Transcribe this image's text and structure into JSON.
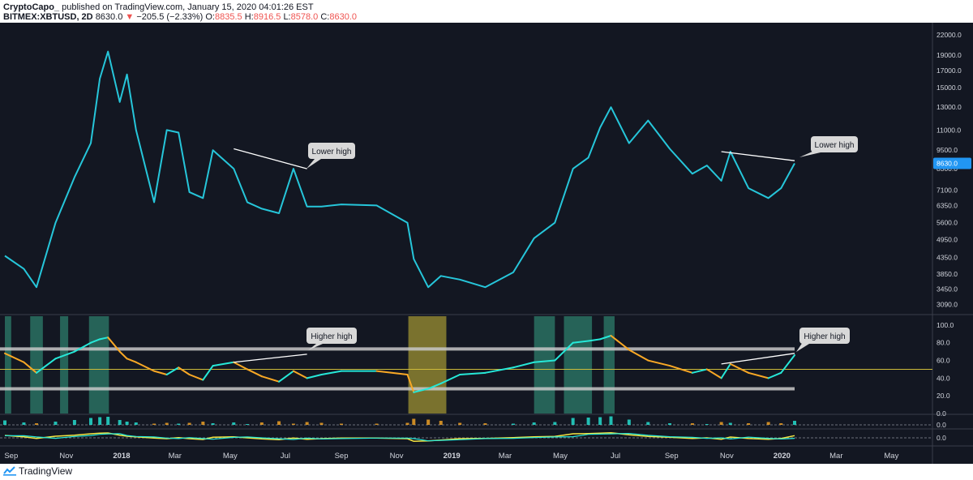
{
  "header": {
    "publisher": "CryptoCapo_",
    "published_text": "published on TradingView.com, January 15, 2020 04:01:26 EST",
    "symbol": "BITMEX:XBTUSD, 2D",
    "last": "8630.0",
    "arrow": "▼",
    "change": "−205.5 (−2.33%)",
    "o_label": "O:",
    "o_value": "8835.5",
    "h_label": "H:",
    "h_value": "8916.5",
    "l_label": "L:",
    "l_value": "8578.0",
    "c_label": "C:",
    "c_value": "8630.0"
  },
  "footer": {
    "brand": "TradingView"
  },
  "colors": {
    "background": "#131722",
    "price_line": "#26c6da",
    "rsi_up": "#26e8d8",
    "rsi_down": "#f9a825",
    "price_tag": "#2196f3",
    "band": "#c8c8c8",
    "mid_line": "#cdbb3a",
    "green_zone": "#2e7d6b",
    "yellow_zone": "#8d8230"
  },
  "chart_data": [
    {
      "type": "line",
      "name": "price",
      "scale": "log",
      "ylim": [
        2900,
        23500
      ],
      "y_ticks": [
        "22000.0",
        "19000.0",
        "17000.0",
        "15000.0",
        "13000.0",
        "11000.0",
        "9500.0",
        "8300.0",
        "7100.0",
        "6350.0",
        "5600.0",
        "4950.0",
        "4350.0",
        "3850.0",
        "3450.0",
        "3090.0"
      ],
      "y_tick_values": [
        22000,
        19000,
        17000,
        15000,
        13000,
        11000,
        9500,
        8300,
        7100,
        6350,
        5600,
        4950,
        4350,
        3850,
        3450,
        3090
      ],
      "last_value_label": "8630.0",
      "last_value": 8630,
      "x_ticks": [
        "Sep",
        "Nov",
        "2018",
        "Mar",
        "May",
        "Jul",
        "Sep",
        "Nov",
        "2019",
        "Mar",
        "May",
        "Jul",
        "Sep",
        "Nov",
        "2020",
        "Mar",
        "May"
      ],
      "x": [
        "2017-08-25",
        "2017-09-15",
        "2017-09-29",
        "2017-10-20",
        "2017-11-10",
        "2017-11-28",
        "2017-12-08",
        "2017-12-17",
        "2017-12-30",
        "2018-01-07",
        "2018-01-17",
        "2018-02-06",
        "2018-02-20",
        "2018-03-05",
        "2018-03-17",
        "2018-04-01",
        "2018-04-12",
        "2018-05-05",
        "2018-05-20",
        "2018-06-05",
        "2018-06-24",
        "2018-07-10",
        "2018-07-25",
        "2018-08-10",
        "2018-09-01",
        "2018-10-10",
        "2018-11-13",
        "2018-11-20",
        "2018-12-06",
        "2018-12-20",
        "2019-01-10",
        "2019-02-07",
        "2019-03-10",
        "2019-04-02",
        "2019-04-25",
        "2019-05-15",
        "2019-06-01",
        "2019-06-14",
        "2019-06-26",
        "2019-07-16",
        "2019-08-06",
        "2019-08-30",
        "2019-09-24",
        "2019-10-10",
        "2019-10-26",
        "2019-11-05",
        "2019-11-25",
        "2019-12-17",
        "2019-12-31",
        "2020-01-15"
      ],
      "values": [
        4400,
        4000,
        3500,
        5600,
        7800,
        10000,
        16000,
        19500,
        13500,
        16500,
        11000,
        6500,
        11000,
        10800,
        7000,
        6700,
        9500,
        8300,
        6500,
        6200,
        6000,
        8300,
        6300,
        6300,
        6400,
        6350,
        5600,
        4300,
        3500,
        3800,
        3700,
        3500,
        3900,
        5000,
        5600,
        8300,
        9000,
        11200,
        13000,
        10000,
        11800,
        9600,
        8000,
        8500,
        7600,
        9400,
        7200,
        6700,
        7200,
        8630
      ],
      "annotations": [
        "Lower high",
        "Lower high"
      ]
    },
    {
      "type": "line",
      "name": "rsi",
      "ylim": [
        0,
        110
      ],
      "y_ticks": [
        "100.0",
        "80.0",
        "60.0",
        "40.0",
        "20.0",
        "0.0"
      ],
      "y_tick_values": [
        100,
        80,
        60,
        40,
        20,
        0
      ],
      "band_lines": [
        73,
        28
      ],
      "mid_line": 50,
      "values": [
        68,
        58,
        46,
        62,
        70,
        80,
        84,
        86,
        70,
        62,
        58,
        48,
        44,
        52,
        44,
        38,
        54,
        58,
        50,
        42,
        36,
        48,
        40,
        44,
        48,
        48,
        44,
        24,
        28,
        34,
        44,
        46,
        52,
        58,
        60,
        80,
        82,
        84,
        88,
        72,
        60,
        54,
        46,
        50,
        40,
        56,
        46,
        40,
        46,
        66
      ],
      "green_zones": [
        [
          "2017-08-25",
          "2017-09-01"
        ],
        [
          "2017-09-22",
          "2017-10-06"
        ],
        [
          "2017-10-25",
          "2017-11-03"
        ],
        [
          "2017-11-26",
          "2017-12-18"
        ],
        [
          "2019-04-02",
          "2019-04-25"
        ],
        [
          "2019-05-05",
          "2019-06-05"
        ],
        [
          "2019-06-18",
          "2019-06-30"
        ]
      ],
      "yellow_zones": [
        [
          "2018-11-14",
          "2018-12-26"
        ]
      ],
      "annotations": [
        "Higher high",
        "Higher high"
      ]
    },
    {
      "type": "bar",
      "name": "momentum histogram",
      "y_ticks": [
        "0.0"
      ],
      "y_tick_values": [
        0
      ]
    },
    {
      "type": "line",
      "name": "oscillator",
      "y_ticks": [
        "0.0"
      ],
      "y_tick_values": [
        0
      ]
    }
  ]
}
